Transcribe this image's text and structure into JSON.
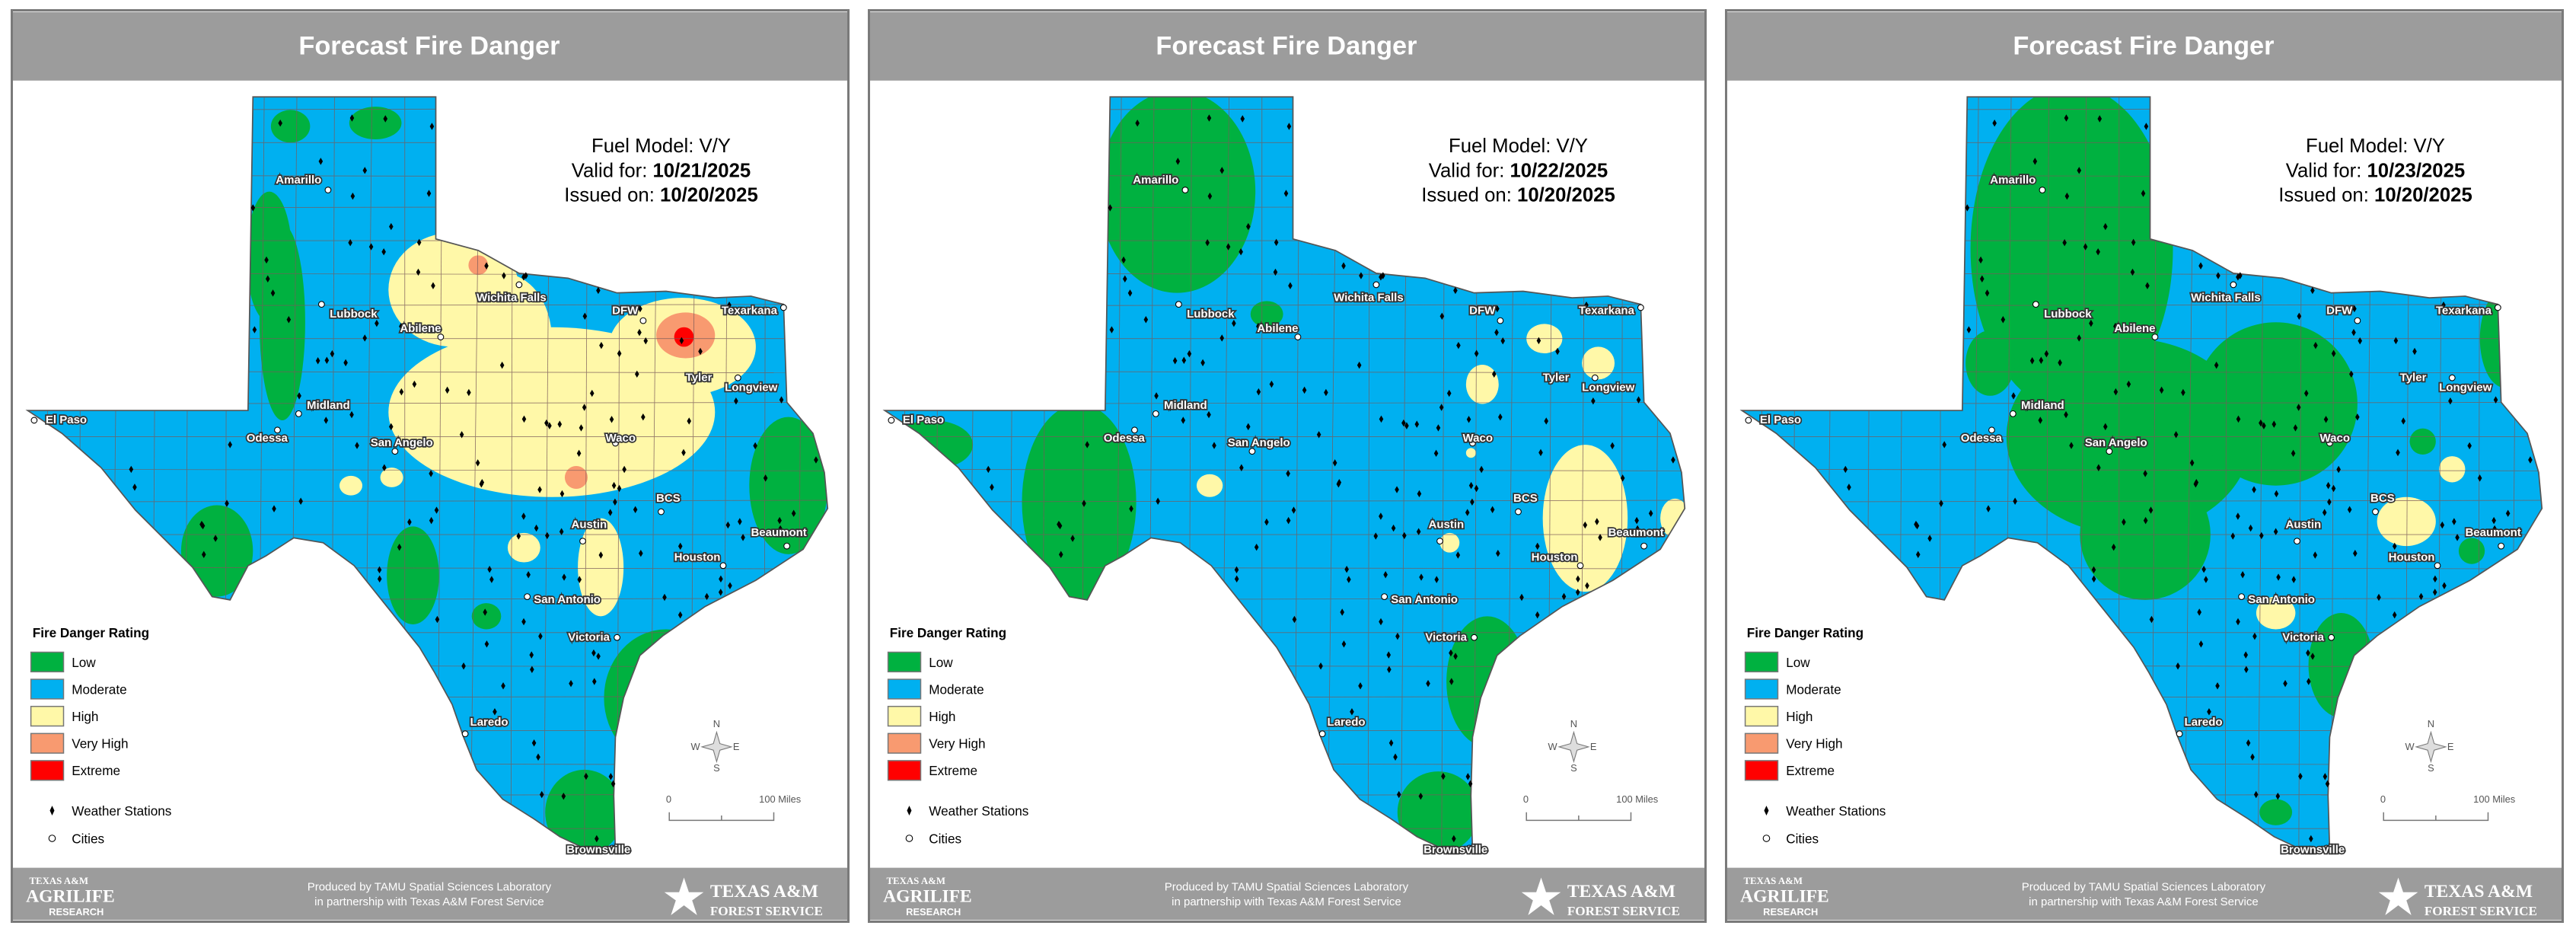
{
  "colors": {
    "Low": "#00b140",
    "Moderate": "#00b0f0",
    "High": "#fff8a8",
    "Very High": "#f89a70",
    "Extreme": "#ff0000"
  },
  "panels": [
    {
      "title": "Forecast Fire Danger",
      "fuel_model": "Fuel Model: V/Y",
      "valid_label": "Valid for: ",
      "valid_date": "10/21/2025",
      "issued_label": "Issued on: ",
      "issued_date": "10/20/2025"
    },
    {
      "title": "Forecast Fire Danger",
      "fuel_model": "Fuel Model: V/Y",
      "valid_label": "Valid for: ",
      "valid_date": "10/22/2025",
      "issued_label": "Issued on: ",
      "issued_date": "10/20/2025"
    },
    {
      "title": "Forecast Fire Danger",
      "fuel_model": "Fuel Model: V/Y",
      "valid_label": "Valid for: ",
      "valid_date": "10/23/2025",
      "issued_label": "Issued on: ",
      "issued_date": "10/20/2025"
    }
  ],
  "legend": {
    "title": "Fire Danger Rating",
    "ratings": [
      "Low",
      "Moderate",
      "High",
      "Very High",
      "Extreme"
    ],
    "weather_stations": "Weather Stations",
    "cities": "Cities"
  },
  "cities": [
    "Amarillo",
    "Lubbock",
    "Wichita Falls",
    "Texarkana",
    "DFW",
    "Tyler",
    "Longview",
    "Abilene",
    "Midland",
    "Odessa",
    "El Paso",
    "San Angelo",
    "Waco",
    "Austin",
    "BCS",
    "Houston",
    "Beaumont",
    "San Antonio",
    "Victoria",
    "Laredo",
    "Brownsville"
  ],
  "scale_bar": {
    "start": "0",
    "end": "100 Miles"
  },
  "compass": {
    "n": "N",
    "s": "S",
    "e": "E",
    "w": "W"
  },
  "footer": {
    "left_logo": {
      "line1": "TEXAS A&M",
      "line2": "AGRILIFE",
      "line3": "RESEARCH"
    },
    "credit_line1": "Produced by TAMU Spatial Sciences Laboratory",
    "credit_line2": "in partnership with Texas A&M Forest Service",
    "right_logo": {
      "line1": "TEXAS A&M",
      "line2": "FOREST SERVICE"
    }
  }
}
